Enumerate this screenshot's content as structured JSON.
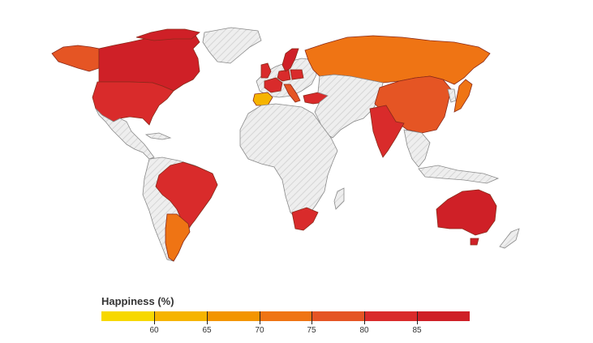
{
  "legend": {
    "title": "Happiness (%)",
    "ticks": [
      "60",
      "65",
      "70",
      "75",
      "80",
      "85"
    ],
    "colors": [
      "#f7d800",
      "#f6b400",
      "#f39500",
      "#ef7414",
      "#e55524",
      "#d92b2b",
      "#cf2027"
    ]
  },
  "map": {
    "nodata_fill": "#eeeeee",
    "nodata_hatch": "#dddddd",
    "border_color": "#8a8a8a",
    "ocean_color": "#ffffff",
    "regions": [
      {
        "name": "Canada",
        "value": 88
      },
      {
        "name": "Alaska",
        "value": 78
      },
      {
        "name": "USA",
        "value": 82
      },
      {
        "name": "Greenland",
        "value": null
      },
      {
        "name": "Mexico",
        "value": null
      },
      {
        "name": "Brazil",
        "value": 82
      },
      {
        "name": "Argentina",
        "value": 73
      },
      {
        "name": "Russia",
        "value": 70
      },
      {
        "name": "China",
        "value": 79
      },
      {
        "name": "India",
        "value": 82
      },
      {
        "name": "Australia",
        "value": 87
      },
      {
        "name": "South Africa",
        "value": 83
      },
      {
        "name": "Spain",
        "value": 61
      },
      {
        "name": "Turkey",
        "value": 84
      },
      {
        "name": "Japan",
        "value": 71
      },
      {
        "name": "Sweden",
        "value": 86
      },
      {
        "name": "United Kingdom",
        "value": 84
      },
      {
        "name": "France",
        "value": 82
      },
      {
        "name": "Germany",
        "value": 80
      },
      {
        "name": "Italy",
        "value": 77
      },
      {
        "name": "Poland",
        "value": 81
      }
    ]
  }
}
